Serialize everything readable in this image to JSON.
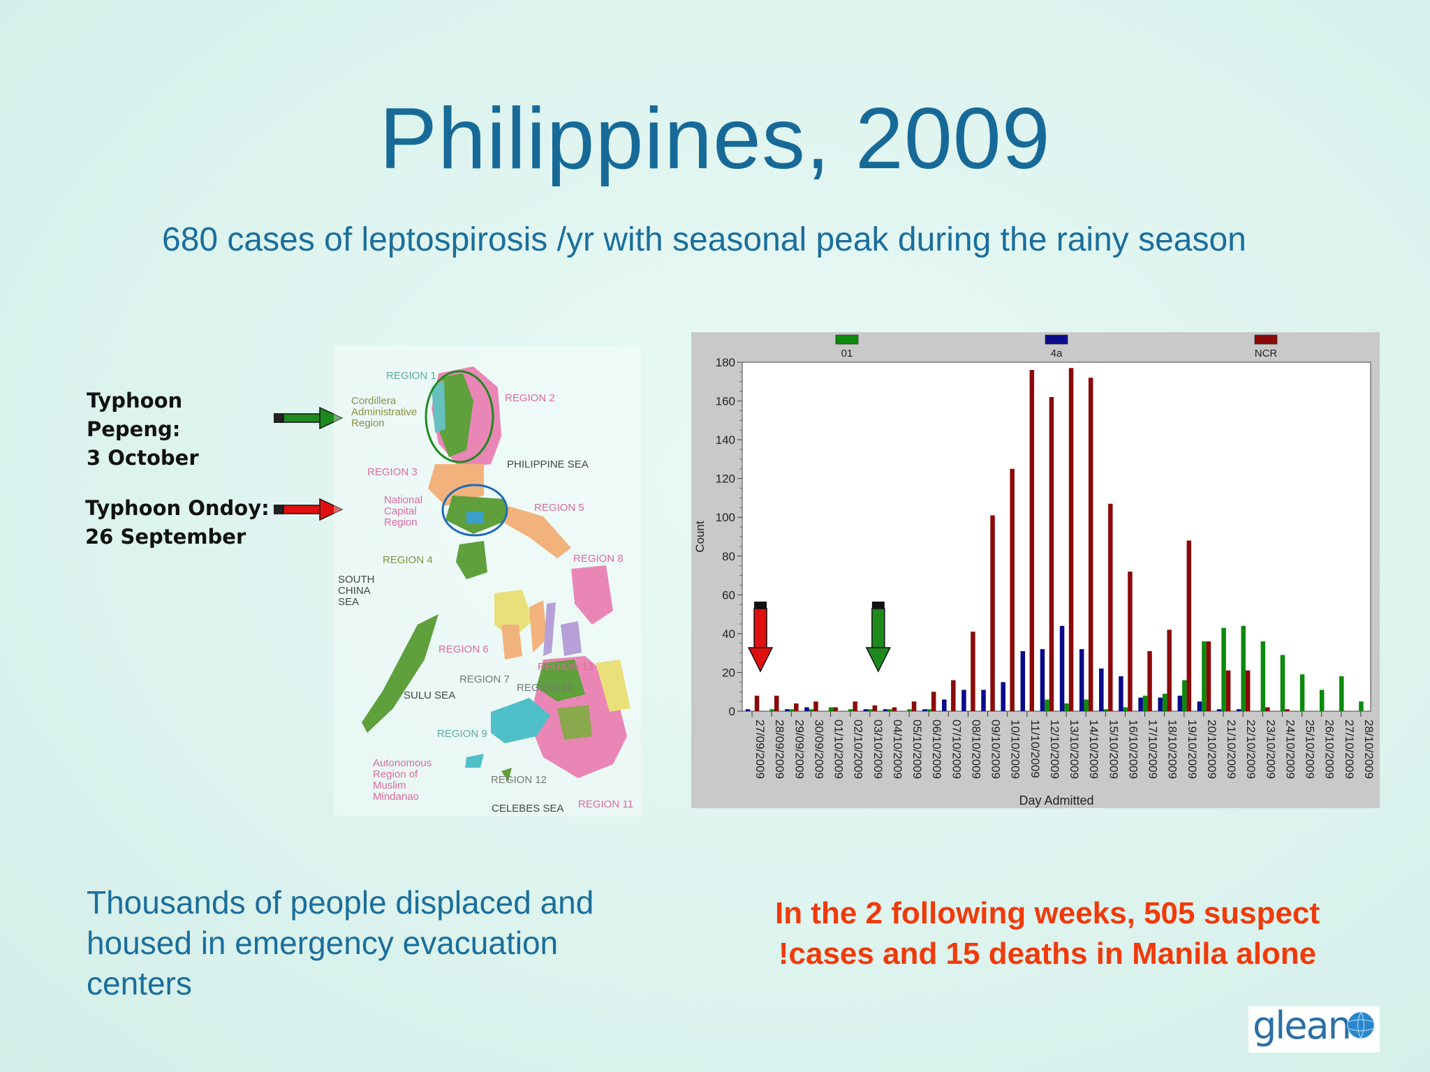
{
  "slide": {
    "title": "Philippines, 2009",
    "subtitle": "680 cases of leptospirosis /yr with seasonal peak during the rainy season",
    "typhoon_pepeng": [
      "Typhoon",
      "Pepeng:",
      "3 October"
    ],
    "typhoon_ondoy": [
      "Typhoon Ondoy:",
      "26 September"
    ],
    "bottom_left": "Thousands of people displaced and housed in emergency evacuation centers",
    "bottom_right_line1": "In the 2 following weeks, 505 suspect",
    "bottom_right_line2": "!cases and 15 deaths in Manila alone",
    "logo_text": "glean",
    "arrow_colors": {
      "pepeng": "#1e8a1e",
      "ondoy": "#e01010"
    }
  },
  "map": {
    "labels": {
      "region1": "REGION 1",
      "region2": "REGION 2",
      "car": [
        "Cordillera",
        "Administrative",
        "Region"
      ],
      "region3": "REGION 3",
      "philippine_sea": "PHILIPPINE SEA",
      "ncr": [
        "National",
        "Capital",
        "Region"
      ],
      "region5": "REGION 5",
      "region4": "REGION 4",
      "region8": "REGION 8",
      "south_china_sea": [
        "SOUTH",
        "CHINA",
        "SEA"
      ],
      "region6": "REGION 6",
      "region13": "REGION 13",
      "region7": "REGION 7",
      "region10": "REGION 10",
      "sulu_sea": "SULU SEA",
      "region9": "REGION 9",
      "armm": [
        "Autonomous",
        "Region of",
        "Muslim",
        "Mindanao"
      ],
      "region12": "REGION 12",
      "celebes_sea": "CELEBES SEA",
      "region11": "REGION 11"
    }
  },
  "chart_data": {
    "type": "bar",
    "xlabel": "Day Admitted",
    "ylabel": "Count",
    "ylim": [
      0,
      180
    ],
    "yticks": [
      0,
      20,
      40,
      60,
      80,
      100,
      120,
      140,
      160,
      180
    ],
    "legend_position": "top",
    "categories": [
      "27/09/2009",
      "28/09/2009",
      "29/09/2009",
      "30/09/2009",
      "01/10/2009",
      "02/10/2009",
      "03/10/2009",
      "04/10/2009",
      "05/10/2009",
      "06/10/2009",
      "07/10/2009",
      "08/10/2009",
      "09/10/2009",
      "10/10/2009",
      "11/10/2009",
      "12/10/2009",
      "13/10/2009",
      "14/10/2009",
      "15/10/2009",
      "16/10/2009",
      "17/10/2009",
      "18/10/2009",
      "19/10/2009",
      "20/10/2009",
      "21/10/2009",
      "22/10/2009",
      "23/10/2009",
      "24/10/2009",
      "25/10/2009",
      "26/10/2009",
      "27/10/2009",
      "28/10/2009"
    ],
    "series": [
      {
        "name": "01",
        "color": "#0d8a0d",
        "values": [
          0,
          1,
          1,
          1,
          2,
          1,
          1,
          1,
          1,
          1,
          0,
          0,
          0,
          0,
          0,
          6,
          4,
          6,
          1,
          2,
          8,
          9,
          16,
          36,
          43,
          44,
          36,
          29,
          19,
          11,
          18,
          5
        ]
      },
      {
        "name": "4a",
        "color": "#0a0a8a",
        "values": [
          1,
          0,
          1,
          2,
          0,
          0,
          1,
          1,
          0,
          1,
          6,
          11,
          11,
          15,
          31,
          32,
          44,
          32,
          22,
          18,
          7,
          7,
          8,
          5,
          1,
          1,
          0,
          0,
          0,
          0,
          0,
          0
        ]
      },
      {
        "name": "NCR",
        "color": "#8a0a0a",
        "values": [
          8,
          8,
          4,
          5,
          2,
          5,
          3,
          2,
          5,
          10,
          16,
          41,
          101,
          125,
          176,
          162,
          177,
          172,
          107,
          72,
          31,
          42,
          88,
          36,
          21,
          21,
          2,
          1,
          0,
          0,
          0,
          0
        ]
      }
    ],
    "annotations": [
      {
        "type": "arrow",
        "color": "#e01010",
        "category": "27/09/2009"
      },
      {
        "type": "arrow",
        "color": "#1e8a1e",
        "category": "03/10/2009"
      }
    ]
  }
}
